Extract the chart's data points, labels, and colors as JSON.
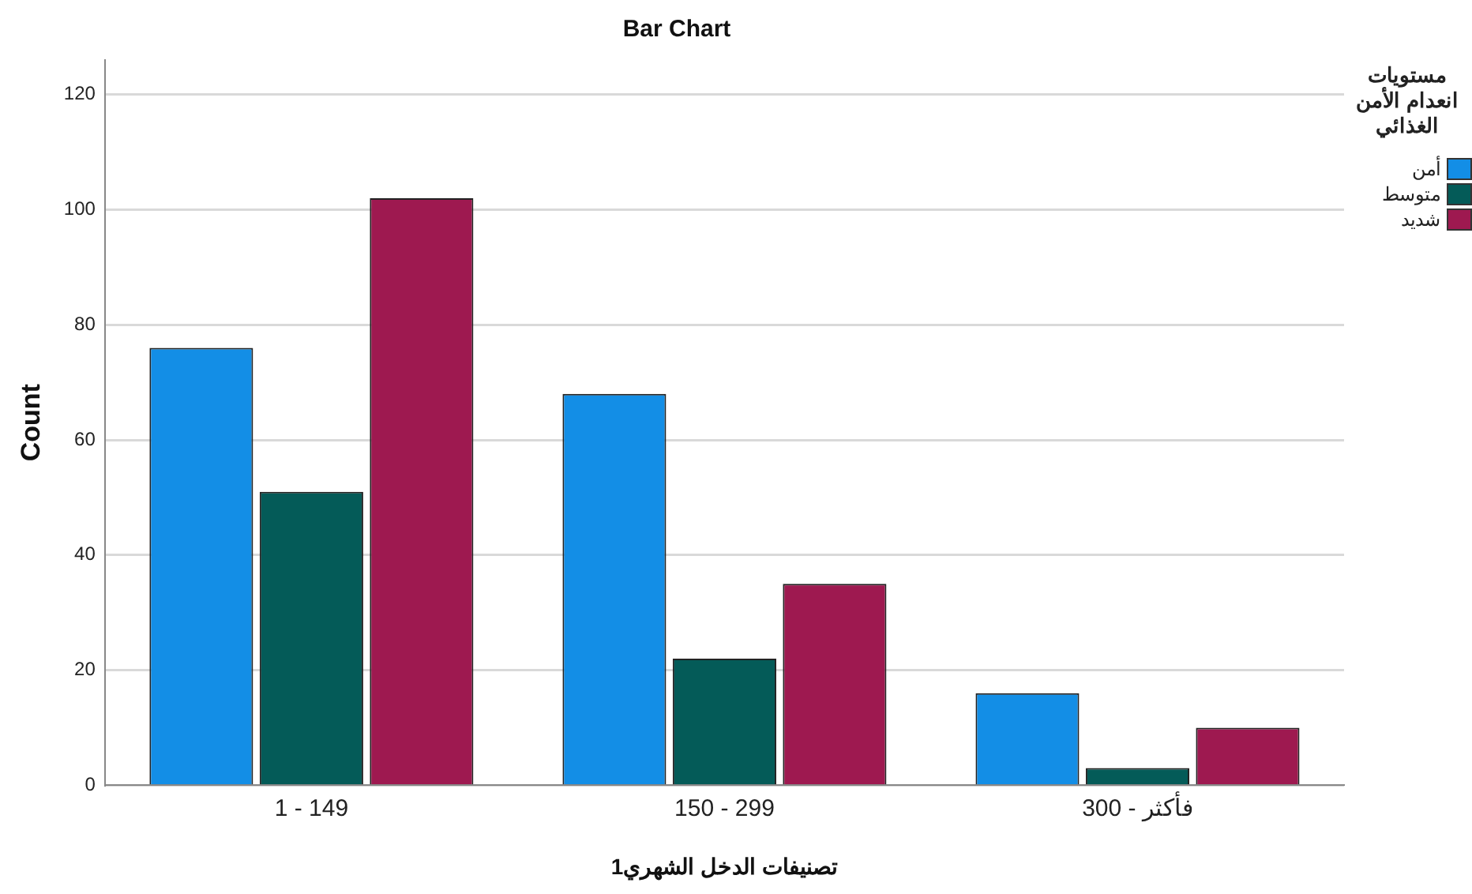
{
  "chart_data": {
    "type": "bar",
    "title": "Bar Chart",
    "xlabel": "تصنيفات الدخل الشهري1",
    "ylabel": "Count",
    "legend_title": "مستويات انعدام الأمن الغذائي",
    "categories": [
      "1 - 149",
      "150 - 299",
      "300 - فأكثر"
    ],
    "series": [
      {
        "name": "أمن",
        "color": "#138ee6",
        "values": [
          76,
          68,
          16
        ]
      },
      {
        "name": "متوسط",
        "color": "#045b58",
        "values": [
          51,
          22,
          3
        ]
      },
      {
        "name": "شديد",
        "color": "#9e1950",
        "values": [
          102,
          35,
          10
        ]
      }
    ],
    "ylim": [
      0,
      126
    ],
    "yticks": [
      0,
      20,
      40,
      60,
      80,
      100,
      120
    ],
    "grid": "y",
    "legend": "right"
  }
}
